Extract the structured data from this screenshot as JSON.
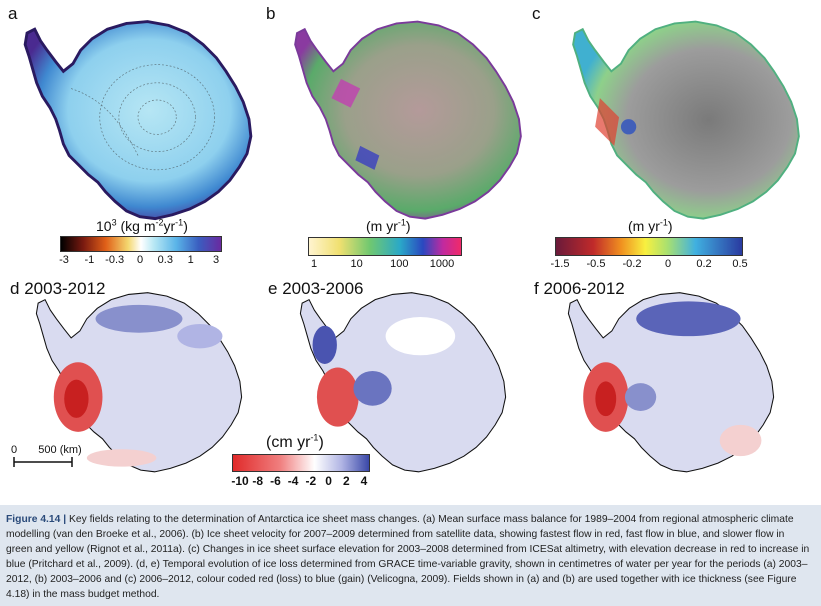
{
  "panels": {
    "a": {
      "letter": "a"
    },
    "b": {
      "letter": "b"
    },
    "c": {
      "letter": "c"
    },
    "d": {
      "letter": "d",
      "period": "2003-2012"
    },
    "e": {
      "letter": "e",
      "period": "2003-2006"
    },
    "f": {
      "letter": "f",
      "period": "2006-2012"
    }
  },
  "colorbars": {
    "a": {
      "title_base": "10",
      "title_sup": "3",
      "title_mid": " (kg m",
      "title_sup2": "-2",
      "title_end": "yr",
      "title_sup3": "-1",
      "title_close": ")",
      "ticks": [
        "-3",
        "-1",
        "-0.3",
        "0",
        "0.3",
        "1",
        "3"
      ]
    },
    "b": {
      "title_pre": "(m yr",
      "title_sup": "-1",
      "title_close": ")",
      "ticks": [
        "1",
        "10",
        "100",
        "1000"
      ]
    },
    "c": {
      "title_pre": "(m yr",
      "title_sup": "-1",
      "title_close": ")",
      "ticks": [
        "-1.5",
        "-0.5",
        "-0.2",
        "0",
        "0.2",
        "0.5"
      ]
    },
    "d": {
      "title_pre": "(cm yr",
      "title_sup": "-1",
      "title_close": ")",
      "ticks": [
        "-10",
        "-8",
        "-6",
        "-4",
        "-2",
        "0",
        "2",
        "4"
      ]
    }
  },
  "scalebar": {
    "zero": "0",
    "label": "500 (km)"
  },
  "caption": {
    "figure_label": "Figure 4.14 |",
    "text": " Key fields relating to the determination of Antarctica ice sheet mass changes. (a) Mean surface mass balance for 1989–2004 from regional atmospheric climate modelling (van den Broeke et al., 2006). (b) Ice sheet velocity for 2007–2009 determined from satellite data, showing fastest flow in red, fast flow in blue, and slower flow in green and yellow (Rignot et al., 2011a). (c) Changes in ice sheet surface elevation for 2003–2008 determined from ICESat altimetry, with elevation decrease in red to increase in blue (Pritchard et al., 2009). (d, e) Temporal evolution of ice loss determined from GRACE time-variable gravity, shown in centimetres of water per year for the periods (a) 2003–2012, (b) 2003–2006 and (c) 2006–2012, colour coded red (loss) to blue (gain) (Velicogna, 2009). Fields shown in (a) and (b) are used together with ice thickness (see Figure 4.18) in the mass budget method."
  },
  "colors": {
    "smb_interior": "#a9dff0",
    "smb_coast": "#4a3fa0",
    "velocity_base": "#9a9a86",
    "elev_interior": "#8a8a8a",
    "grace_loss": "#e0383a",
    "grace_gain": "#6a74c0",
    "grace_neutral": "#d9dbf0",
    "caption_accent": "#2a4a7a"
  }
}
